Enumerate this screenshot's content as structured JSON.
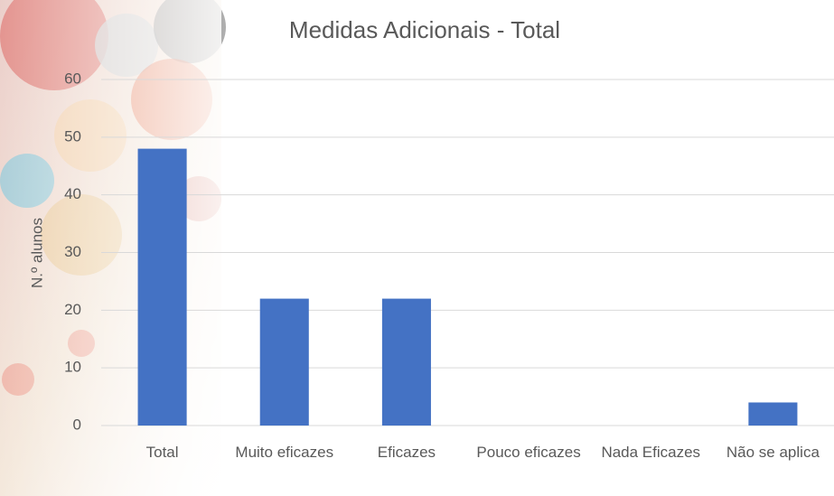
{
  "chart_data": {
    "type": "bar",
    "title": "Medidas Adicionais - Total",
    "y_label": "N.º alunos",
    "categories": [
      "Total",
      "Muito eficazes",
      "Eficazes",
      "Pouco eficazes",
      "Nada Eficazes",
      "Não se aplica"
    ],
    "values": [
      48,
      22,
      22,
      0,
      0,
      4
    ],
    "color": "#4472c4",
    "ylim": [
      0,
      60
    ],
    "yticks": [
      0,
      10,
      20,
      30,
      40,
      50,
      60
    ],
    "grid": true
  }
}
